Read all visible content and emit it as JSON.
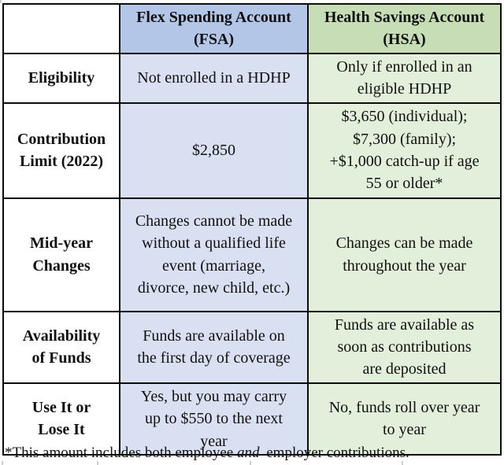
{
  "table": {
    "header": {
      "fsa": "Flex Spending Account\n(FSA)",
      "hsa": "Health Savings Account\n(HSA)"
    },
    "rows": [
      {
        "label": "Eligibility",
        "fsa": "Not enrolled in a HDHP",
        "hsa": "Only if enrolled in an\neligible HDHP"
      },
      {
        "label": "Contribution\nLimit (2022)",
        "fsa": "$2,850",
        "hsa": "$3,650 (individual);\n$7,300 (family);\n+$1,000 catch-up if age\n55 or older*"
      },
      {
        "label": "Mid-year\nChanges",
        "fsa": "Changes cannot be made\nwithout a qualified life\nevent (marriage,\ndivorce, new child, etc.)",
        "hsa": "Changes can be made\nthroughout the year"
      },
      {
        "label": "Availability\nof Funds",
        "fsa": "Funds are available on\nthe first day of coverage",
        "hsa": "Funds are available as\nsoon as contributions\nare deposited"
      },
      {
        "label": "Use It or\nLose It",
        "fsa": "Yes, but you may carry\nup to $550 to the next\nyear",
        "hsa": "No, funds roll over year\nto year"
      }
    ]
  },
  "footnote": {
    "prefix": "*This amount includes both employee ",
    "italic": "and",
    "suffix": " employer contributions."
  },
  "colors": {
    "fsa_header": "#b4c6e7",
    "fsa_body": "#d9e0f1",
    "hsa_header": "#c6ddb5",
    "hsa_body": "#e2efda",
    "border": "#0c0c0c"
  }
}
